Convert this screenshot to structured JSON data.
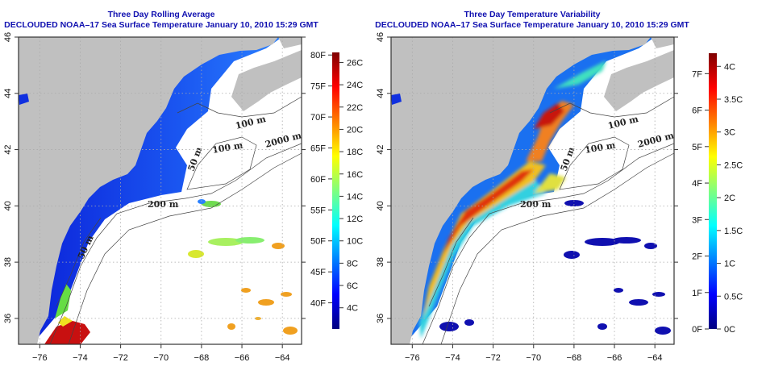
{
  "panels": [
    {
      "title_line1": "Three Day Rolling Average",
      "title_line2": "DECLOUDED NOAA–17 Sea Surface Temperature January 10, 2010 15:29 GMT",
      "colorbar": {
        "range_c": [
          2.1,
          26.9
        ],
        "f_ticks": [
          {
            "label": "80F",
            "f": 80
          },
          {
            "label": "75F",
            "f": 75
          },
          {
            "label": "70F",
            "f": 70
          },
          {
            "label": "65F",
            "f": 65
          },
          {
            "label": "60F",
            "f": 60
          },
          {
            "label": "55F",
            "f": 55
          },
          {
            "label": "50F",
            "f": 50
          },
          {
            "label": "45F",
            "f": 45
          },
          {
            "label": "40F",
            "f": 40
          }
        ],
        "c_ticks": [
          {
            "label": "26C",
            "c": 26
          },
          {
            "label": "24C",
            "c": 24
          },
          {
            "label": "22C",
            "c": 22
          },
          {
            "label": "20C",
            "c": 20
          },
          {
            "label": "18C",
            "c": 18
          },
          {
            "label": "16C",
            "c": 16
          },
          {
            "label": "14C",
            "c": 14
          },
          {
            "label": "12C",
            "c": 12
          },
          {
            "label": "10C",
            "c": 10
          },
          {
            "label": "8C",
            "c": 8
          },
          {
            "label": "6C",
            "c": 6
          },
          {
            "label": "4C",
            "c": 4
          }
        ],
        "f_is_absolute": true
      }
    },
    {
      "title_line1": "Three Day Temperature Variability",
      "title_line2": "DECLOUDED NOAA–17 Sea Surface Temperature January 10, 2010 15:29 GMT",
      "colorbar": {
        "range_c": [
          0,
          4.2
        ],
        "f_ticks": [
          {
            "label": "7F",
            "f": 7
          },
          {
            "label": "6F",
            "f": 6
          },
          {
            "label": "5F",
            "f": 5
          },
          {
            "label": "4F",
            "f": 4
          },
          {
            "label": "3F",
            "f": 3
          },
          {
            "label": "2F",
            "f": 2
          },
          {
            "label": "1F",
            "f": 1
          },
          {
            "label": "0F",
            "f": 0
          }
        ],
        "c_ticks": [
          {
            "label": "4C",
            "c": 4
          },
          {
            "label": "3.5C",
            "c": 3.5
          },
          {
            "label": "3C",
            "c": 3
          },
          {
            "label": "2.5C",
            "c": 2.5
          },
          {
            "label": "2C",
            "c": 2
          },
          {
            "label": "1.5C",
            "c": 1.5
          },
          {
            "label": "1C",
            "c": 1
          },
          {
            "label": "0.5C",
            "c": 0.5
          },
          {
            "label": "0C",
            "c": 0
          }
        ],
        "f_is_absolute": false
      }
    }
  ],
  "map": {
    "lon_range": [
      -77.05,
      -63.05
    ],
    "lat_range": [
      35.08,
      46
    ],
    "lon_ticks": [
      {
        "label": "−76",
        "v": -76
      },
      {
        "label": "−74",
        "v": -74
      },
      {
        "label": "−72",
        "v": -72
      },
      {
        "label": "−70",
        "v": -70
      },
      {
        "label": "−68",
        "v": -68
      },
      {
        "label": "−66",
        "v": -66
      },
      {
        "label": "−64",
        "v": -64
      }
    ],
    "lat_ticks": [
      {
        "label": "36",
        "v": 36
      },
      {
        "label": "38",
        "v": 38
      },
      {
        "label": "40",
        "v": 40
      },
      {
        "label": "42",
        "v": 42
      },
      {
        "label": "44",
        "v": 44
      },
      {
        "label": "46",
        "v": 46
      }
    ],
    "contour_labels": {
      "c100a": "100 m",
      "c100b": "100 m",
      "c2000": "2000 m",
      "c50": "50 m",
      "c200": "200 m",
      "c50b": "50 m"
    }
  },
  "colors": {
    "land": "#c0c0c0",
    "title": "#1010b0",
    "contour": "#444444"
  }
}
